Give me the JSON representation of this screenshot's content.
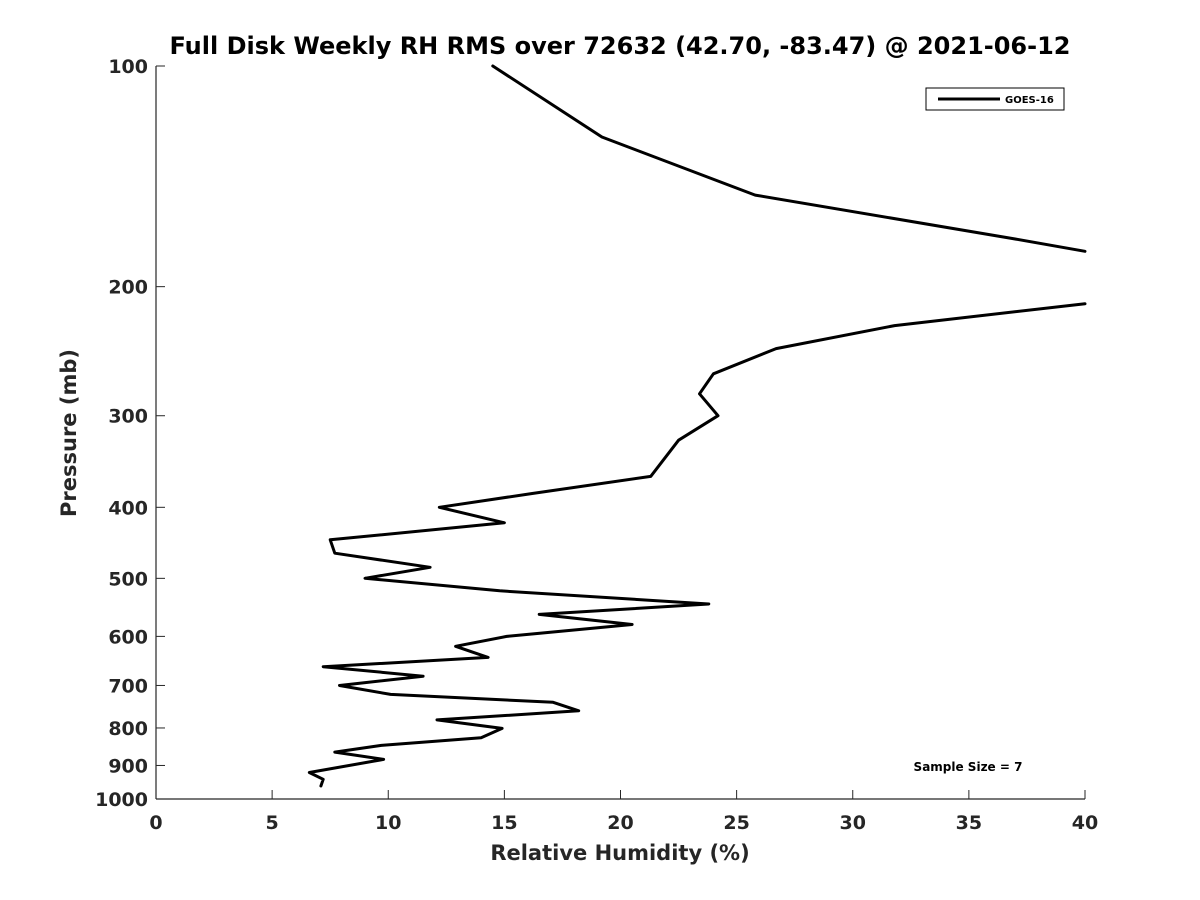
{
  "chart_data": {
    "type": "line",
    "title": "Full Disk Weekly RH RMS over 72632 (42.70, -83.47) @ 2021-06-12",
    "xlabel": "Relative Humidity (%)",
    "ylabel": "Pressure (mb)",
    "xlim": [
      0,
      40
    ],
    "ylim": [
      1000,
      100
    ],
    "yscale": "log",
    "xticks": [
      0,
      5,
      10,
      15,
      20,
      25,
      30,
      35,
      40
    ],
    "yticks": [
      100,
      200,
      300,
      400,
      500,
      600,
      700,
      800,
      900,
      1000
    ],
    "grid": false,
    "legend": {
      "position": "top-right",
      "entries": [
        "GOES-16"
      ]
    },
    "annotation": "Sample Size = 7",
    "series": [
      {
        "name": "GOES-16",
        "color": "#000000",
        "points": [
          [
            14.5,
            100
          ],
          [
            19.2,
            125
          ],
          [
            25.8,
            150
          ],
          [
            36.9,
            172
          ],
          [
            40.0,
            179
          ],
          [
            null,
            null
          ],
          [
            40.0,
            211
          ],
          [
            31.8,
            226
          ],
          [
            26.7,
            243
          ],
          [
            24.0,
            263
          ],
          [
            23.4,
            280
          ],
          [
            24.2,
            300
          ],
          [
            22.5,
            324
          ],
          [
            21.3,
            363
          ],
          [
            16.2,
            383
          ],
          [
            12.2,
            400
          ],
          [
            15.0,
            420
          ],
          [
            7.5,
            443
          ],
          [
            7.7,
            462
          ],
          [
            11.8,
            483
          ],
          [
            9.0,
            500
          ],
          [
            14.8,
            520
          ],
          [
            23.8,
            542
          ],
          [
            16.5,
            560
          ],
          [
            20.5,
            578
          ],
          [
            15.1,
            600
          ],
          [
            12.9,
            619
          ],
          [
            14.3,
            641
          ],
          [
            7.2,
            660
          ],
          [
            11.5,
            680
          ],
          [
            7.9,
            700
          ],
          [
            10.1,
            720
          ],
          [
            17.1,
            738
          ],
          [
            18.2,
            758
          ],
          [
            12.1,
            780
          ],
          [
            14.9,
            801
          ],
          [
            14.0,
            825
          ],
          [
            9.7,
            845
          ],
          [
            7.7,
            863
          ],
          [
            9.8,
            883
          ],
          [
            6.6,
            920
          ],
          [
            7.2,
            940
          ],
          [
            7.1,
            960
          ]
        ]
      }
    ]
  }
}
